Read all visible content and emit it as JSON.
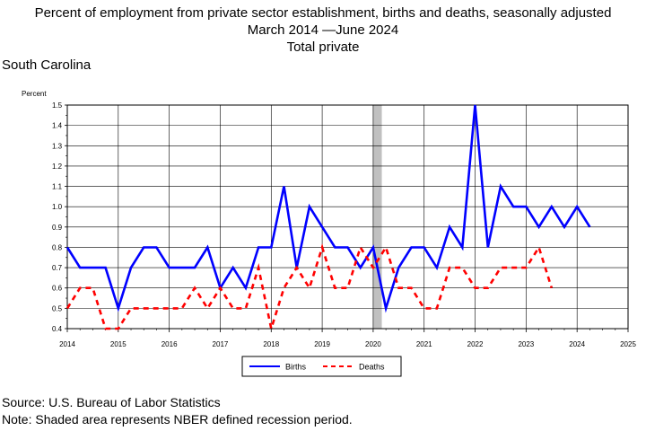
{
  "title": {
    "line1": "Percent of employment from private sector establishment, births and deaths, seasonally adjusted",
    "line2": "March 2014 —June 2024",
    "line3": "Total private"
  },
  "region": "South Carolina",
  "source": "Source: U.S. Bureau of Labor Statistics",
  "note": "Note: Shaded area represents NBER defined recession period.",
  "colors": {
    "births": "#0000ff",
    "deaths": "#ff0000",
    "recession": "#c0c0c0"
  },
  "chart_data": {
    "type": "line",
    "ylabel": "Percent",
    "ylim": [
      0.4,
      1.5
    ],
    "yticks": [
      "0.4",
      "0.5",
      "0.6",
      "0.7",
      "0.8",
      "0.9",
      "1.0",
      "1.1",
      "1.2",
      "1.3",
      "1.4",
      "1.5"
    ],
    "xlim": [
      2014,
      2025
    ],
    "xticks": [
      "2014",
      "2015",
      "2016",
      "2017",
      "2018",
      "2019",
      "2020",
      "2021",
      "2022",
      "2023",
      "2024",
      "2025"
    ],
    "grid": true,
    "legend": "bottom-center",
    "recession": {
      "start": 2020.0,
      "end": 2020.17
    },
    "series": [
      {
        "name": "Births",
        "style": "solid",
        "x": [
          2014.0,
          2014.25,
          2014.5,
          2014.75,
          2015.0,
          2015.25,
          2015.5,
          2015.75,
          2016.0,
          2016.25,
          2016.5,
          2016.75,
          2017.0,
          2017.25,
          2017.5,
          2017.75,
          2018.0,
          2018.25,
          2018.5,
          2018.75,
          2019.0,
          2019.25,
          2019.5,
          2019.75,
          2020.0,
          2020.25,
          2020.5,
          2020.75,
          2021.0,
          2021.25,
          2021.5,
          2021.75,
          2022.0,
          2022.25,
          2022.5,
          2022.75,
          2023.0,
          2023.25,
          2023.5,
          2023.75,
          2024.0,
          2024.25
        ],
        "values": [
          0.8,
          0.7,
          0.7,
          0.7,
          0.5,
          0.7,
          0.8,
          0.8,
          0.7,
          0.7,
          0.7,
          0.8,
          0.6,
          0.7,
          0.6,
          0.8,
          0.8,
          1.1,
          0.7,
          1.0,
          0.9,
          0.8,
          0.8,
          0.7,
          0.8,
          0.5,
          0.7,
          0.8,
          0.8,
          0.7,
          0.9,
          0.8,
          1.5,
          0.8,
          1.1,
          1.0,
          1.0,
          0.9,
          1.0,
          0.9,
          1.0,
          0.9
        ]
      },
      {
        "name": "Deaths",
        "style": "dashed",
        "x": [
          2014.0,
          2014.25,
          2014.5,
          2014.75,
          2015.0,
          2015.25,
          2015.5,
          2015.75,
          2016.0,
          2016.25,
          2016.5,
          2016.75,
          2017.0,
          2017.25,
          2017.5,
          2017.75,
          2018.0,
          2018.25,
          2018.5,
          2018.75,
          2019.0,
          2019.25,
          2019.5,
          2019.75,
          2020.0,
          2020.25,
          2020.5,
          2020.75,
          2021.0,
          2021.25,
          2021.5,
          2021.75,
          2022.0,
          2022.25,
          2022.5,
          2022.75,
          2023.0,
          2023.25,
          2023.5
        ],
        "values": [
          0.5,
          0.6,
          0.6,
          0.4,
          0.4,
          0.5,
          0.5,
          0.5,
          0.5,
          0.5,
          0.6,
          0.5,
          0.6,
          0.5,
          0.5,
          0.7,
          0.4,
          0.6,
          0.7,
          0.6,
          0.8,
          0.6,
          0.6,
          0.8,
          0.7,
          0.8,
          0.6,
          0.6,
          0.5,
          0.5,
          0.7,
          0.7,
          0.6,
          0.6,
          0.7,
          0.7,
          0.7,
          0.8,
          0.6
        ]
      }
    ]
  }
}
